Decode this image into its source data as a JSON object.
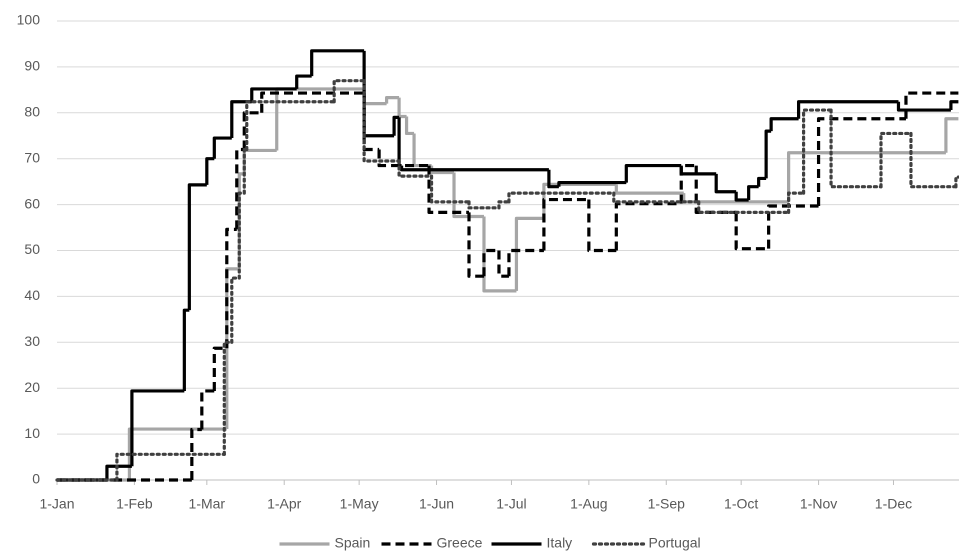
{
  "chart_data": {
    "type": "step",
    "xlim": [
      0,
      361
    ],
    "ylim": [
      0,
      100
    ],
    "yticks": [
      0,
      10,
      20,
      30,
      40,
      50,
      60,
      70,
      80,
      90,
      100
    ],
    "xticks": [
      {
        "value": 0,
        "label": "1-Jan"
      },
      {
        "value": 31,
        "label": "1-Feb"
      },
      {
        "value": 60,
        "label": "1-Mar"
      },
      {
        "value": 91,
        "label": "1-Apr"
      },
      {
        "value": 121,
        "label": "1-May"
      },
      {
        "value": 152,
        "label": "1-Jun"
      },
      {
        "value": 182,
        "label": "1-Jul"
      },
      {
        "value": 213,
        "label": "1-Aug"
      },
      {
        "value": 244,
        "label": "1-Sep"
      },
      {
        "value": 274,
        "label": "1-Oct"
      },
      {
        "value": 305,
        "label": "1-Nov"
      },
      {
        "value": 335,
        "label": "1-Dec"
      }
    ],
    "grid": true,
    "legend": "bottom",
    "series": [
      {
        "name": "Spain",
        "color": "#a6a6a6",
        "dash": "solid",
        "x": [
          0,
          29,
          68,
          73,
          75,
          88,
          123,
          132,
          137,
          140,
          143,
          150,
          159,
          171,
          184,
          195,
          224,
          251,
          293,
          356
        ],
        "values": [
          0,
          11.1,
          46,
          66.7,
          71.8,
          85.2,
          82,
          83.3,
          79.2,
          75.5,
          68.5,
          67,
          57.4,
          41.2,
          57,
          64.4,
          62.5,
          60.6,
          71.3,
          78.7
        ]
      },
      {
        "name": "Greece",
        "color": "#000000",
        "dash": "dashed",
        "x": [
          0,
          54,
          58,
          63,
          68,
          72,
          75,
          82,
          123,
          129,
          149,
          165,
          171,
          177,
          181,
          195,
          213,
          224,
          250,
          256,
          272,
          285,
          305,
          340
        ],
        "values": [
          0,
          11,
          19.4,
          28.7,
          54.6,
          72,
          80,
          84.3,
          72,
          68.5,
          58.3,
          44.4,
          50,
          44.4,
          50,
          61.1,
          50,
          60.2,
          68.5,
          58.3,
          50.4,
          59.7,
          78.7,
          84.3
        ]
      },
      {
        "name": "Italy",
        "color": "#000000",
        "dash": "solid",
        "x": [
          0,
          20,
          30,
          51,
          53,
          60,
          63,
          70,
          78,
          96,
          102,
          123,
          135,
          137,
          138,
          197,
          201,
          228,
          250,
          264,
          272,
          277,
          281,
          284,
          286,
          297,
          337,
          358
        ],
        "values": [
          0,
          3,
          19.4,
          37,
          64.3,
          70,
          74.5,
          82.4,
          85.2,
          88,
          93.5,
          75,
          79,
          68.5,
          67.6,
          63.9,
          64.8,
          68.5,
          66.7,
          62.8,
          61,
          63.9,
          65.7,
          76,
          78.7,
          82.4,
          80.6,
          82.4
        ]
      },
      {
        "name": "Portugal",
        "color": "#404040",
        "dash": "dotted",
        "x": [
          0,
          24,
          67,
          70,
          73,
          75,
          76,
          111,
          123,
          137,
          150,
          165,
          177,
          181,
          223,
          257,
          293,
          299,
          310,
          330,
          342,
          360
        ],
        "values": [
          0,
          5.6,
          30,
          44,
          62.5,
          72,
          82.4,
          87,
          69.5,
          66.2,
          60.6,
          59.3,
          60.6,
          62.5,
          60.6,
          58.3,
          62.5,
          80.6,
          63.9,
          75.5,
          63.9,
          66
        ]
      }
    ]
  }
}
